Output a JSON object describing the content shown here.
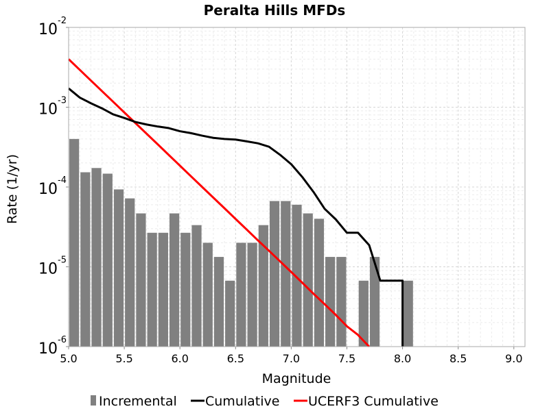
{
  "chart_data": {
    "type": "bar+line",
    "title": "Peralta Hills MFDs",
    "xlabel": "Magnitude",
    "ylabel": "Rate (1/yr)",
    "xlim": [
      5.0,
      9.1
    ],
    "ylim": [
      1e-06,
      0.01
    ],
    "yscale": "log",
    "grid": true,
    "legend_position": "bottom",
    "x_ticks": [
      "5.0",
      "5.5",
      "6.0",
      "6.5",
      "7.0",
      "7.5",
      "8.0",
      "8.5",
      "9.0"
    ],
    "x_tick_values": [
      5.0,
      5.5,
      6.0,
      6.5,
      7.0,
      7.5,
      8.0,
      8.5,
      9.0
    ],
    "y_ticks": [
      {
        "base": "10",
        "exp": "-6"
      },
      {
        "base": "10",
        "exp": "-5"
      },
      {
        "base": "10",
        "exp": "-4"
      },
      {
        "base": "10",
        "exp": "-3"
      },
      {
        "base": "10",
        "exp": "-2"
      }
    ],
    "y_tick_values": [
      1e-06,
      1e-05,
      0.0001,
      0.001,
      0.01
    ],
    "incremental": {
      "name": "Incremental",
      "color": "#808080",
      "x": [
        5.05,
        5.15,
        5.25,
        5.35,
        5.45,
        5.55,
        5.65,
        5.75,
        5.85,
        5.95,
        6.05,
        6.15,
        6.25,
        6.35,
        6.45,
        6.55,
        6.65,
        6.75,
        6.85,
        6.95,
        7.05,
        7.15,
        7.25,
        7.35,
        7.45,
        7.65,
        7.75,
        8.05
      ],
      "values": [
        0.0004,
        0.000153,
        0.000173,
        0.000147,
        9.33e-05,
        7.2e-05,
        4.67e-05,
        2.67e-05,
        2.67e-05,
        4.67e-05,
        2.67e-05,
        3.33e-05,
        2e-05,
        1.33e-05,
        6.7e-06,
        2e-05,
        2e-05,
        3.33e-05,
        6.67e-05,
        6.67e-05,
        6e-05,
        4.67e-05,
        4e-05,
        1.33e-05,
        1.33e-05,
        6.7e-06,
        1.33e-05,
        6.7e-06
      ]
    },
    "cumulative": {
      "name": "Cumulative",
      "color": "#000000",
      "x": [
        5.0,
        5.1,
        5.2,
        5.3,
        5.4,
        5.5,
        5.6,
        5.7,
        5.8,
        5.9,
        6.0,
        6.1,
        6.2,
        6.3,
        6.4,
        6.5,
        6.6,
        6.7,
        6.8,
        6.9,
        7.0,
        7.1,
        7.2,
        7.3,
        7.4,
        7.5,
        7.6,
        7.7,
        7.8,
        7.9,
        8.0,
        8.0
      ],
      "values": [
        0.00172,
        0.00132,
        0.00112,
        0.000967,
        0.000813,
        0.000733,
        0.000653,
        0.000607,
        0.000573,
        0.000547,
        0.0005,
        0.000473,
        0.00044,
        0.000413,
        0.0004,
        0.000393,
        0.000373,
        0.000353,
        0.00032,
        0.000253,
        0.000193,
        0.000133,
        8.67e-05,
        5.33e-05,
        3.93e-05,
        2.67e-05,
        2.67e-05,
        1.87e-05,
        6.7e-06,
        6.7e-06,
        6.7e-06,
        1e-06
      ]
    },
    "ucerf3_cumulative": {
      "name": "UCERF3 Cumulative",
      "color": "#ff0000",
      "x": [
        5.0,
        5.1,
        5.2,
        5.3,
        5.4,
        5.5,
        5.6,
        5.7,
        5.8,
        5.9,
        6.0,
        6.1,
        6.2,
        6.3,
        6.4,
        6.5,
        6.6,
        6.7,
        6.8,
        6.9,
        7.0,
        7.1,
        7.2,
        7.3,
        7.4,
        7.5,
        7.6,
        7.7,
        7.7
      ],
      "values": [
        0.004,
        0.00294,
        0.00216,
        0.00159,
        0.00117,
        0.00086,
        0.000633,
        0.000466,
        0.000343,
        0.000252,
        0.000185,
        0.000136,
        0.0001,
        7.36e-05,
        5.42e-05,
        3.98e-05,
        2.93e-05,
        2.15e-05,
        1.59e-05,
        1.17e-05,
        8.6e-06,
        6.3e-06,
        4.6e-06,
        3.4e-06,
        2.5e-06,
        1.8e-06,
        1.4e-06,
        1e-06,
        1e-06
      ]
    }
  }
}
